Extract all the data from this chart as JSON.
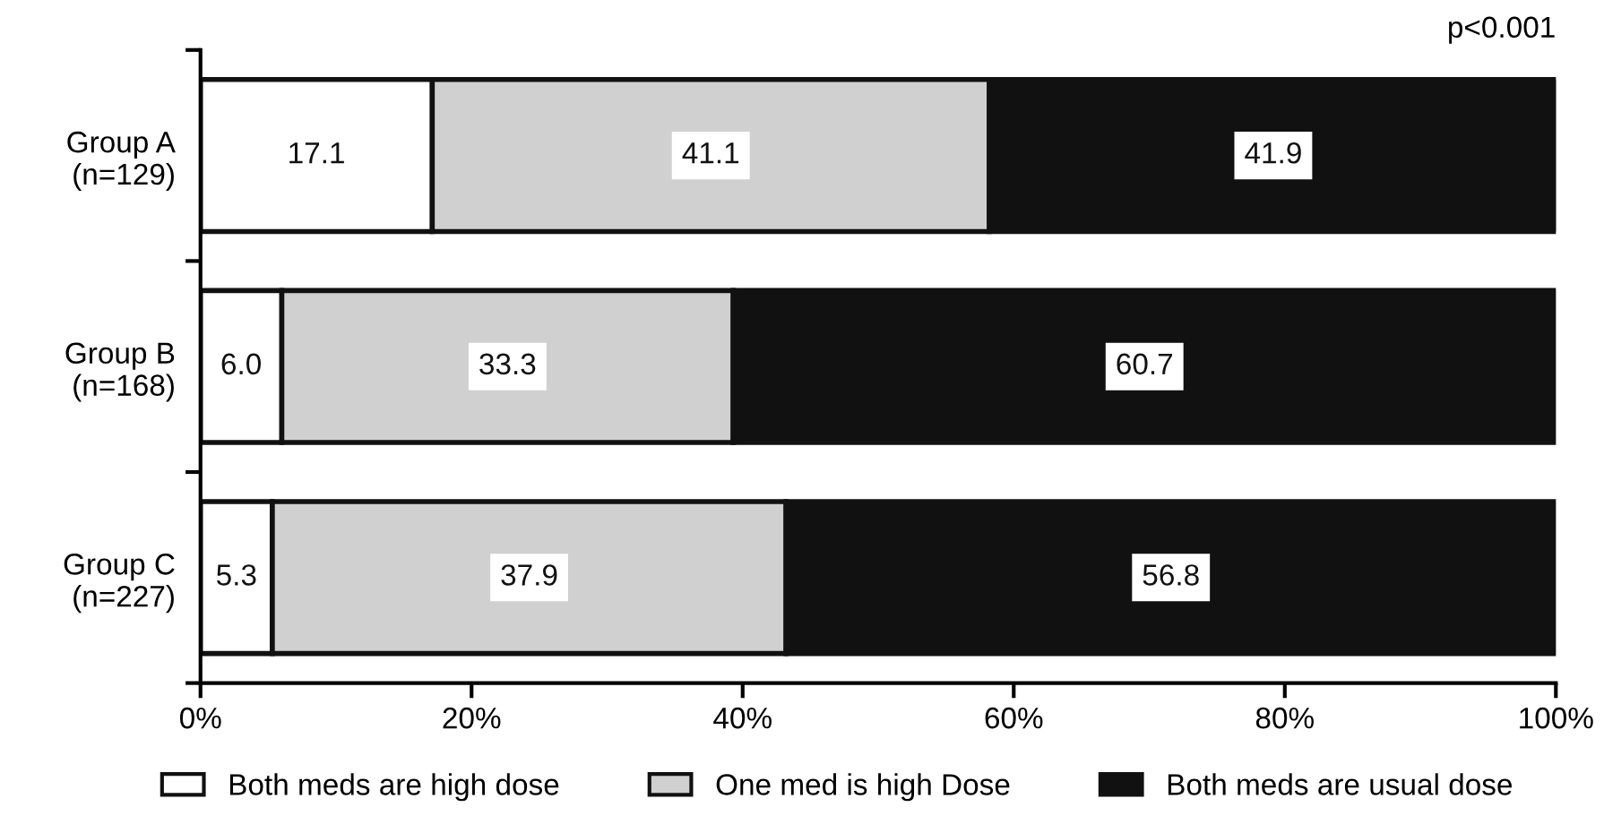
{
  "chart_data": {
    "type": "bar",
    "orientation": "horizontal",
    "stacked": true,
    "categories": [
      "Group A\n(n=129)",
      "Group B\n(n=168)",
      "Group C\n(n=227)"
    ],
    "series": [
      {
        "name": "Both meds are high dose",
        "color": "#ffffff",
        "values": [
          17.1,
          6.0,
          5.3
        ],
        "value_labels": [
          "17.1",
          "6.0",
          "5.3"
        ]
      },
      {
        "name": "One med is high Dose",
        "color": "#d0d0d0",
        "values": [
          41.1,
          33.3,
          37.9
        ],
        "value_labels": [
          "41.1",
          "33.3",
          "37.9"
        ]
      },
      {
        "name": "Both meds are usual dose",
        "color": "#111111",
        "values": [
          41.9,
          60.7,
          56.8
        ],
        "value_labels": [
          "41.9",
          "60.7",
          "56.8"
        ]
      }
    ],
    "xlim": [
      0,
      100
    ],
    "xticks": [
      {
        "value": 0,
        "label": "0%"
      },
      {
        "value": 20,
        "label": "20%"
      },
      {
        "value": 40,
        "label": "40%"
      },
      {
        "value": 60,
        "label": "60%"
      },
      {
        "value": 80,
        "label": "80%"
      },
      {
        "value": 100,
        "label": "100%"
      }
    ],
    "grid": false,
    "legend": "bottom",
    "annotations": [
      "p<0.001"
    ]
  }
}
